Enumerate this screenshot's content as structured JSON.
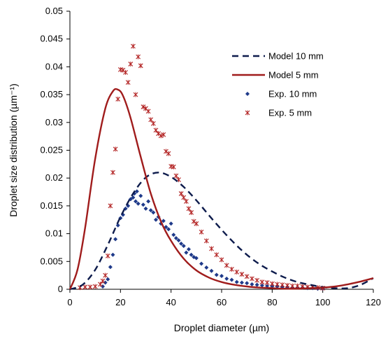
{
  "chart_data": {
    "type": "line",
    "xlabel": "Droplet diameter (µm)",
    "ylabel": "Droplet size distribution (µm⁻¹)",
    "xlim": [
      0,
      120
    ],
    "ylim": [
      0,
      0.05
    ],
    "x_ticks": [
      "0",
      "20",
      "40",
      "60",
      "80",
      "100",
      "120"
    ],
    "y_ticks": [
      "0",
      "0.005",
      "0.01",
      "0.015",
      "0.02",
      "0.025",
      "0.03",
      "0.035",
      "0.04",
      "0.045",
      "0.05"
    ],
    "grid": false,
    "legend_position": "top-right",
    "series": [
      {
        "name": "Model 10 mm",
        "style": "dashed-line",
        "color": "#0d1b4c",
        "x": [
          0,
          5,
          10,
          15,
          20,
          25,
          30,
          35,
          40,
          45,
          50,
          55,
          60,
          65,
          70,
          75,
          80,
          85,
          90,
          95,
          100,
          105,
          110,
          115,
          120
        ],
        "y": [
          0,
          0.0008,
          0.0035,
          0.008,
          0.013,
          0.0172,
          0.0201,
          0.021,
          0.0202,
          0.0184,
          0.016,
          0.0133,
          0.0107,
          0.0083,
          0.0062,
          0.0045,
          0.0032,
          0.0021,
          0.0013,
          0.0008,
          0.0004,
          0.0002,
          0.0002,
          0.0008,
          0.002
        ]
      },
      {
        "name": "Model 5 mm",
        "style": "solid-line",
        "color": "#a01c1c",
        "x": [
          0,
          3,
          6,
          10,
          14,
          17,
          19,
          21,
          24,
          28,
          32,
          36,
          40,
          45,
          50,
          55,
          60,
          65,
          70,
          75,
          80,
          85,
          90,
          95,
          100,
          105,
          110,
          115,
          120
        ],
        "y": [
          0,
          0.0035,
          0.011,
          0.0235,
          0.0325,
          0.0356,
          0.0359,
          0.0348,
          0.0308,
          0.0238,
          0.0172,
          0.0122,
          0.0087,
          0.0055,
          0.0034,
          0.0021,
          0.0013,
          0.0008,
          0.0005,
          0.0003,
          0.0002,
          0.0001,
          0.0001,
          0.0002,
          0.0003,
          0.0005,
          0.0009,
          0.0014,
          0.002
        ]
      },
      {
        "name": "Exp.  10 mm",
        "style": "diamond-markers",
        "color": "#1f3a8a",
        "x": [
          13,
          14,
          15,
          16,
          17,
          18,
          19,
          20,
          21,
          22,
          23,
          24,
          25,
          25.5,
          26,
          26.5,
          27,
          28,
          29,
          30,
          31,
          32,
          33,
          34,
          35,
          36,
          37,
          38,
          39,
          40,
          41,
          42,
          43,
          44,
          45,
          46,
          47,
          48,
          49,
          50,
          52,
          54,
          56,
          58,
          60,
          62,
          64,
          66,
          68,
          70,
          72,
          74,
          76,
          78,
          80,
          82,
          84,
          86,
          88,
          90,
          92,
          94,
          96,
          98,
          100
        ],
        "y": [
          0.0005,
          0.0012,
          0.0018,
          0.004,
          0.0062,
          0.009,
          0.0115,
          0.0128,
          0.0134,
          0.0145,
          0.015,
          0.0162,
          0.0165,
          0.0172,
          0.0158,
          0.0176,
          0.0154,
          0.0168,
          0.0152,
          0.0145,
          0.0158,
          0.0142,
          0.0138,
          0.0125,
          0.013,
          0.0118,
          0.0123,
          0.0112,
          0.0108,
          0.0118,
          0.0098,
          0.0092,
          0.0088,
          0.0082,
          0.0078,
          0.0066,
          0.0072,
          0.0062,
          0.0058,
          0.0056,
          0.0046,
          0.0039,
          0.0033,
          0.0026,
          0.0024,
          0.0019,
          0.0017,
          0.0013,
          0.0012,
          0.0011,
          0.0009,
          0.0008,
          0.0007,
          0.0006,
          0.0005,
          0.0005,
          0.0004,
          0.0004,
          0.0003,
          0.0003,
          0.0003,
          0.0002,
          0.0002,
          0.0001,
          0.0001
        ]
      },
      {
        "name": "Exp. 5 mm",
        "style": "star-markers",
        "color": "#b22222",
        "x": [
          4,
          6,
          8,
          10,
          12,
          13,
          14,
          15,
          16,
          17,
          18,
          19,
          20,
          21,
          22,
          23,
          24,
          25,
          26,
          27,
          28,
          29,
          30,
          31,
          32,
          33,
          34,
          35,
          36,
          37,
          38,
          39,
          40,
          41,
          42,
          43,
          44,
          45,
          46,
          47,
          48,
          49,
          50,
          52,
          54,
          56,
          58,
          60,
          62,
          64,
          66,
          68,
          70,
          72,
          74,
          76,
          78,
          80,
          82,
          84,
          86,
          88,
          90,
          92,
          94,
          96,
          98,
          100
        ],
        "y": [
          0.0003,
          0.0004,
          0.0004,
          0.0005,
          0.0009,
          0.0015,
          0.0025,
          0.006,
          0.015,
          0.021,
          0.0252,
          0.0342,
          0.0395,
          0.0394,
          0.039,
          0.0372,
          0.0405,
          0.0437,
          0.035,
          0.0418,
          0.0402,
          0.0328,
          0.0325,
          0.032,
          0.0305,
          0.0298,
          0.0286,
          0.028,
          0.0276,
          0.0278,
          0.0248,
          0.0244,
          0.0221,
          0.022,
          0.0204,
          0.0197,
          0.0172,
          0.0165,
          0.0158,
          0.0145,
          0.0138,
          0.0122,
          0.0118,
          0.0103,
          0.0087,
          0.0073,
          0.0062,
          0.0053,
          0.0043,
          0.0036,
          0.0031,
          0.0027,
          0.0023,
          0.0019,
          0.0016,
          0.0013,
          0.0012,
          0.001,
          0.0009,
          0.0008,
          0.0007,
          0.0006,
          0.0006,
          0.0005,
          0.0004,
          0.0004,
          0.0003,
          0.0002
        ]
      }
    ]
  }
}
